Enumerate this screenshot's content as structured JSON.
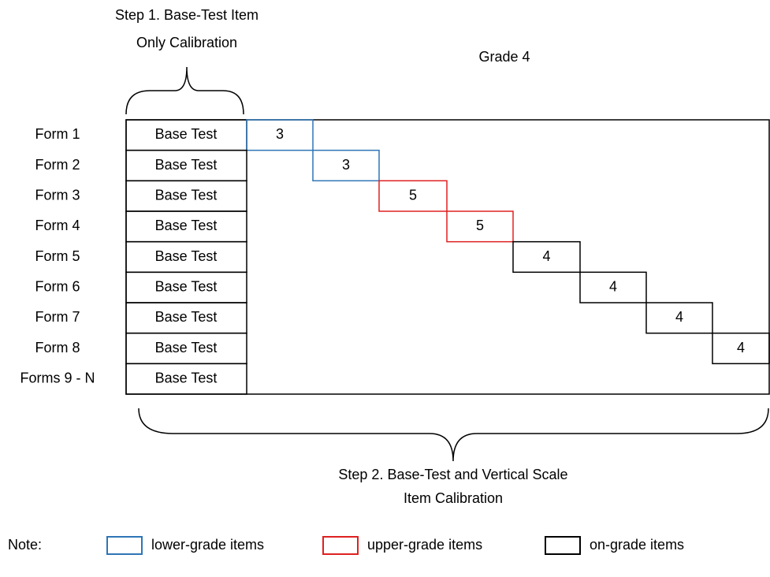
{
  "header": {
    "step1": [
      "Step 1. Base-Test Item",
      "Only Calibration"
    ],
    "grade": "Grade 4"
  },
  "rows": [
    {
      "label": "Form 1",
      "base": "Base Test",
      "items": 3,
      "color": "#2e75b6"
    },
    {
      "label": "Form 2",
      "base": "Base Test",
      "items": 3,
      "color": "#2e75b6"
    },
    {
      "label": "Form 3",
      "base": "Base Test",
      "items": 5,
      "color": "#e02020"
    },
    {
      "label": "Form 4",
      "base": "Base Test",
      "items": 5,
      "color": "#e02020"
    },
    {
      "label": "Form 5",
      "base": "Base Test",
      "items": 4,
      "color": "#000000"
    },
    {
      "label": "Form 6",
      "base": "Base Test",
      "items": 4,
      "color": "#000000"
    },
    {
      "label": "Form 7",
      "base": "Base Test",
      "items": 4,
      "color": "#000000"
    },
    {
      "label": "Form 8",
      "base": "Base Test",
      "items": 4,
      "color": "#000000"
    },
    {
      "label": "Forms 9 - N",
      "base": "Base Test"
    }
  ],
  "footer": {
    "step2": [
      "Step 2.  Base-Test and Vertical Scale",
      "Item Calibration"
    ]
  },
  "legend": {
    "note": "Note:",
    "items": [
      {
        "label": "lower-grade items",
        "color": "#2e75b6"
      },
      {
        "label": "upper-grade items",
        "color": "#e02020"
      },
      {
        "label": "on-grade items",
        "color": "#000000"
      }
    ]
  }
}
